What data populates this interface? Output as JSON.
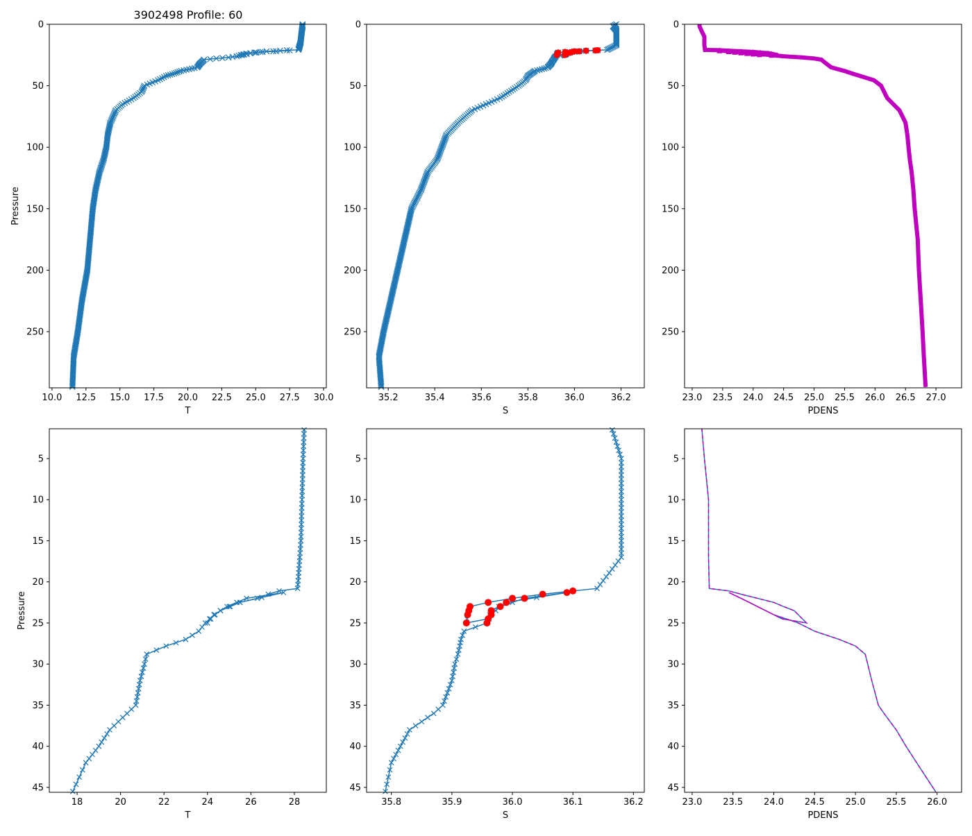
{
  "chart_data": {
    "type": "line",
    "title": "3902498 Profile: 60",
    "profile": {
      "pressure": [
        0,
        1.5,
        5,
        10,
        15,
        17,
        20.8,
        21.1,
        21.5,
        22,
        22.5,
        23,
        23.5,
        24,
        25,
        24.5,
        23.5,
        22.5,
        21.3,
        22,
        23,
        24,
        25,
        26,
        27,
        27.8,
        28.8,
        30,
        32,
        35,
        36,
        38,
        40,
        42,
        45.5,
        50,
        55,
        60,
        65,
        70,
        80,
        90,
        100,
        110,
        120,
        135,
        150,
        175,
        200,
        225,
        250,
        270,
        295
      ],
      "T": [
        28.45,
        28.45,
        28.4,
        28.35,
        28.3,
        28.25,
        28.15,
        27.3,
        26.8,
        26.3,
        25.5,
        25.0,
        24.6,
        24.3,
        24.0,
        24.1,
        24.6,
        25.5,
        27.5,
        25.8,
        24.9,
        24.3,
        23.9,
        23.6,
        23.0,
        22.1,
        21.2,
        21.1,
        20.9,
        20.7,
        20.3,
        19.5,
        19.0,
        18.4,
        17.8,
        16.8,
        16.6,
        16.0,
        15.2,
        14.7,
        14.3,
        14.1,
        14.0,
        13.8,
        13.5,
        13.2,
        13.0,
        12.8,
        12.6,
        12.2,
        11.9,
        11.6,
        11.5
      ],
      "S": [
        36.18,
        36.165,
        36.18,
        36.18,
        36.18,
        36.18,
        36.14,
        36.1,
        36.05,
        36.0,
        35.96,
        35.93,
        35.928,
        35.926,
        35.924,
        35.96,
        35.965,
        35.99,
        36.09,
        36.02,
        35.98,
        35.965,
        35.958,
        35.92,
        35.915,
        35.913,
        35.91,
        35.905,
        35.9,
        35.885,
        35.87,
        35.83,
        35.815,
        35.8,
        35.79,
        35.76,
        35.72,
        35.68,
        35.62,
        35.56,
        35.5,
        35.45,
        35.43,
        35.41,
        35.37,
        35.34,
        35.3,
        35.27,
        35.24,
        35.21,
        35.18,
        35.16,
        35.17
      ],
      "PDENS": [
        23.12,
        23.12,
        23.15,
        23.2,
        23.2,
        23.2,
        23.21,
        23.45,
        23.6,
        23.8,
        24.0,
        24.12,
        24.25,
        24.3,
        24.4,
        24.1,
        23.9,
        23.7,
        23.45,
        23.6,
        23.8,
        24.0,
        24.3,
        24.5,
        24.8,
        25.0,
        25.12,
        25.15,
        25.2,
        25.28,
        25.35,
        25.5,
        25.62,
        25.75,
        25.98,
        26.1,
        26.15,
        26.2,
        26.3,
        26.4,
        26.5,
        26.53,
        26.55,
        26.57,
        26.6,
        26.63,
        26.65,
        26.7,
        26.72,
        26.75,
        26.78,
        26.8,
        26.83
      ],
      "flagged_indices": [
        7,
        8,
        9,
        10,
        11,
        12,
        13,
        14,
        15,
        16,
        17,
        18,
        19,
        20,
        21,
        22
      ]
    },
    "panels": [
      {
        "var": "T",
        "xlabel": "T",
        "ylabel": "Pressure",
        "xlim": [
          9.8,
          30.2
        ],
        "ylim": [
          295.7,
          0
        ],
        "xticks": [
          "10.0",
          "12.5",
          "15.0",
          "17.5",
          "20.0",
          "22.5",
          "25.0",
          "27.5",
          "30.0"
        ],
        "yticks": [
          "0",
          "50",
          "100",
          "150",
          "200",
          "250"
        ]
      },
      {
        "var": "S",
        "xlabel": "S",
        "ylabel": "",
        "xlim": [
          35.107,
          36.3
        ],
        "ylim": [
          295.7,
          0
        ],
        "xticks": [
          "35.2",
          "35.4",
          "35.6",
          "35.8",
          "36.0",
          "36.2"
        ],
        "yticks": [
          "0",
          "50",
          "100",
          "150",
          "200",
          "250"
        ]
      },
      {
        "var": "PDENS",
        "xlabel": "PDENS",
        "ylabel": "",
        "xlim": [
          22.875,
          27.42
        ],
        "ylim": [
          295.7,
          0
        ],
        "xticks": [
          "23.0",
          "23.5",
          "24.0",
          "24.5",
          "25.0",
          "25.5",
          "26.0",
          "26.5",
          "27.0"
        ],
        "yticks": [
          "0",
          "50",
          "100",
          "150",
          "200",
          "250"
        ]
      },
      {
        "var": "T",
        "xlabel": "T",
        "ylabel": "Pressure",
        "xlim": [
          16.72,
          29.47
        ],
        "ylim": [
          45.6,
          1.37
        ],
        "xticks": [
          "18",
          "20",
          "22",
          "24",
          "26",
          "28"
        ],
        "yticks": [
          "5",
          "10",
          "15",
          "20",
          "25",
          "30",
          "35",
          "40",
          "45"
        ]
      },
      {
        "var": "S",
        "xlabel": "S",
        "ylabel": "",
        "xlim": [
          35.759,
          36.218
        ],
        "ylim": [
          45.6,
          1.37
        ],
        "xticks": [
          "35.8",
          "35.9",
          "36.0",
          "36.1",
          "36.2"
        ],
        "yticks": [
          "5",
          "10",
          "15",
          "20",
          "25",
          "30",
          "35",
          "40",
          "45"
        ]
      },
      {
        "var": "PDENS",
        "xlabel": "PDENS",
        "ylabel": "",
        "xlim": [
          22.907,
          26.3
        ],
        "ylim": [
          45.6,
          1.37
        ],
        "xticks": [
          "23.0",
          "23.5",
          "24.0",
          "24.5",
          "25.0",
          "25.5",
          "26.0"
        ],
        "yticks": [
          "5",
          "10",
          "15",
          "20",
          "25",
          "30",
          "35",
          "40",
          "45"
        ]
      }
    ],
    "colors": {
      "line": "#1f77b4",
      "flag_S": "#ff0000",
      "flag_PDENS": "#bf00bf"
    },
    "grid": false
  }
}
